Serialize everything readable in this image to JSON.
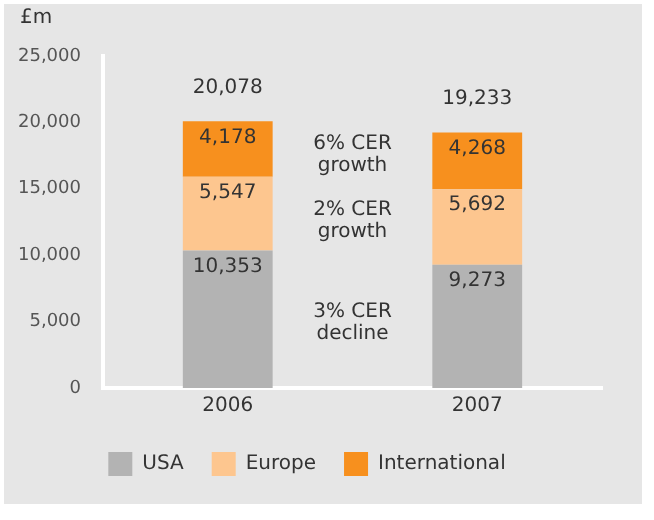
{
  "chart_data": {
    "type": "bar",
    "ylabel": "£m",
    "categories": [
      "2006",
      "2007"
    ],
    "stacked": true,
    "series": [
      {
        "name": "USA",
        "color": "#b3b3b3",
        "values": [
          10353,
          9273
        ]
      },
      {
        "name": "Europe",
        "color": "#fdc68f",
        "values": [
          5547,
          5692
        ]
      },
      {
        "name": "International",
        "color": "#f7901e",
        "values": [
          4178,
          4268
        ]
      }
    ],
    "ylim": [
      0,
      25000
    ],
    "yticks": [
      {
        "value": 0,
        "label": "0"
      },
      {
        "value": 5000,
        "label": "5,000"
      },
      {
        "value": 10000,
        "label": "10,000"
      },
      {
        "value": 15000,
        "label": "15,000"
      },
      {
        "value": 20000,
        "label": "20,000"
      },
      {
        "value": 25000,
        "label": "25,000"
      }
    ],
    "value_labels": [
      [
        "10,353",
        "9,273"
      ],
      [
        "5,547",
        "5,692"
      ],
      [
        "4,178",
        "4,268"
      ]
    ],
    "totals": [
      "20,078",
      "19,233"
    ],
    "annotations": [
      "6% CER growth",
      "2% CER growth",
      "3% CER decline"
    ],
    "grid": false,
    "legend": "bottom"
  }
}
